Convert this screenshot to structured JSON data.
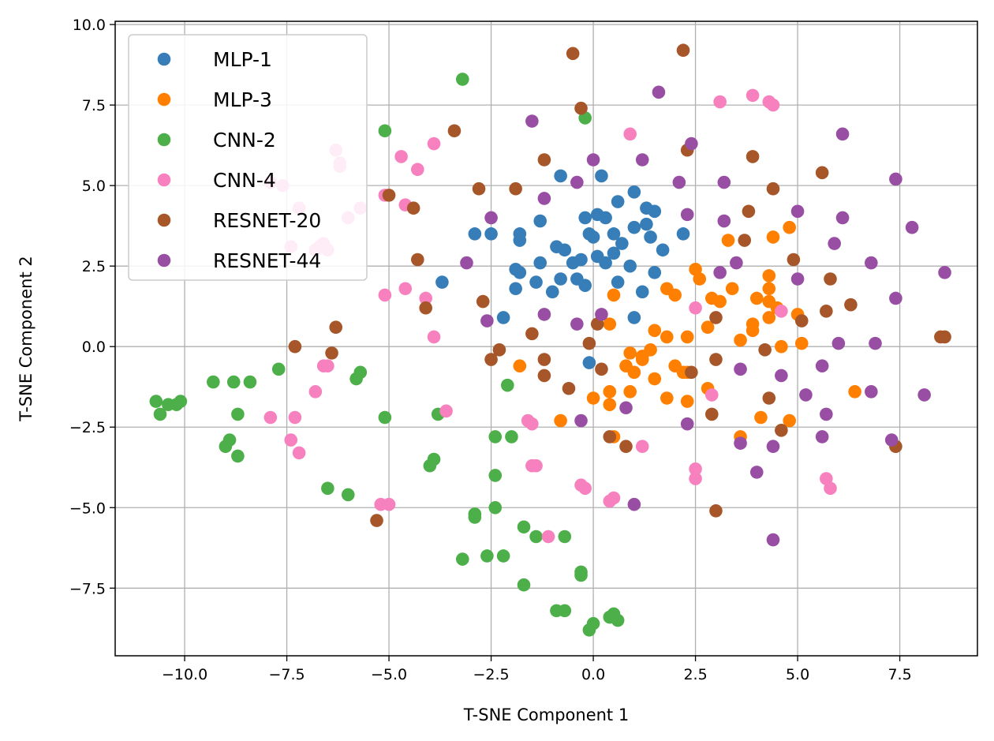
{
  "chart_data": {
    "type": "scatter",
    "title": "",
    "xlabel": "T-SNE Component 1",
    "ylabel": "T-SNE Component 2",
    "xlim": [
      -11.7,
      9.4
    ],
    "ylim": [
      -9.6,
      10.1
    ],
    "xticks": [
      -10.0,
      -7.5,
      -5.0,
      -2.5,
      0.0,
      2.5,
      5.0,
      7.5
    ],
    "yticks": [
      -7.5,
      -5.0,
      -2.5,
      0.0,
      2.5,
      5.0,
      7.5,
      10.0
    ],
    "xtick_labels": [
      "−10.0",
      "−7.5",
      "−5.0",
      "−2.5",
      "0.0",
      "2.5",
      "5.0",
      "7.5"
    ],
    "ytick_labels": [
      "−7.5",
      "−5.0",
      "−2.5",
      "0.0",
      "2.5",
      "5.0",
      "7.5",
      "10.0"
    ],
    "grid": true,
    "legend_position": "top-left",
    "series": [
      {
        "name": "MLP-1",
        "color": "#377eb8",
        "points": [
          [
            -0.8,
            5.3
          ],
          [
            0.2,
            5.3
          ],
          [
            1.0,
            4.8
          ],
          [
            -1.3,
            3.9
          ],
          [
            -1.8,
            3.5
          ],
          [
            -2.9,
            3.5
          ],
          [
            -2.5,
            3.5
          ],
          [
            -0.2,
            4.0
          ],
          [
            0.1,
            4.1
          ],
          [
            0.3,
            4.0
          ],
          [
            0.6,
            4.5
          ],
          [
            1.3,
            4.3
          ],
          [
            1.5,
            4.2
          ],
          [
            1.0,
            3.7
          ],
          [
            1.3,
            3.8
          ],
          [
            -1.8,
            3.3
          ],
          [
            -0.9,
            3.1
          ],
          [
            -0.7,
            3.0
          ],
          [
            -0.1,
            3.5
          ],
          [
            0.0,
            3.4
          ],
          [
            0.5,
            3.5
          ],
          [
            0.7,
            3.2
          ],
          [
            1.4,
            3.4
          ],
          [
            1.7,
            3.0
          ],
          [
            2.2,
            3.5
          ],
          [
            -0.3,
            2.7
          ],
          [
            -0.5,
            2.6
          ],
          [
            0.1,
            2.8
          ],
          [
            0.5,
            2.9
          ],
          [
            0.3,
            2.6
          ],
          [
            0.9,
            2.5
          ],
          [
            1.5,
            2.3
          ],
          [
            -1.9,
            2.4
          ],
          [
            -1.8,
            2.3
          ],
          [
            -1.3,
            2.6
          ],
          [
            -1.4,
            2.0
          ],
          [
            -1.9,
            1.8
          ],
          [
            -0.8,
            2.1
          ],
          [
            -0.4,
            2.1
          ],
          [
            -0.2,
            1.9
          ],
          [
            0.6,
            2.0
          ],
          [
            -1.0,
            1.7
          ],
          [
            1.2,
            1.7
          ],
          [
            -2.2,
            0.9
          ],
          [
            1.0,
            0.9
          ],
          [
            -3.7,
            2.0
          ],
          [
            -0.1,
            -0.5
          ]
        ]
      },
      {
        "name": "MLP-3",
        "color": "#ff7f00",
        "points": [
          [
            3.3,
            3.3
          ],
          [
            4.4,
            3.4
          ],
          [
            4.8,
            3.7
          ],
          [
            2.5,
            2.4
          ],
          [
            2.6,
            2.1
          ],
          [
            3.4,
            1.8
          ],
          [
            4.3,
            2.2
          ],
          [
            4.3,
            1.8
          ],
          [
            1.8,
            1.8
          ],
          [
            2.0,
            1.6
          ],
          [
            2.9,
            1.5
          ],
          [
            3.1,
            1.4
          ],
          [
            4.0,
            1.5
          ],
          [
            4.3,
            1.4
          ],
          [
            5.0,
            1.0
          ],
          [
            0.5,
            1.6
          ],
          [
            4.3,
            0.9
          ],
          [
            4.5,
            1.2
          ],
          [
            0.4,
            0.7
          ],
          [
            1.5,
            0.5
          ],
          [
            2.8,
            0.6
          ],
          [
            3.9,
            0.7
          ],
          [
            3.9,
            0.5
          ],
          [
            1.8,
            0.3
          ],
          [
            2.3,
            0.3
          ],
          [
            3.6,
            0.2
          ],
          [
            5.1,
            0.1
          ],
          [
            4.6,
            0.0
          ],
          [
            0.9,
            -0.2
          ],
          [
            1.2,
            -0.3
          ],
          [
            1.4,
            -0.1
          ],
          [
            0.8,
            -0.6
          ],
          [
            1.0,
            -0.8
          ],
          [
            1.2,
            -0.4
          ],
          [
            2.0,
            -0.6
          ],
          [
            2.2,
            -0.8
          ],
          [
            -1.8,
            -0.6
          ],
          [
            1.5,
            -1.0
          ],
          [
            2.3,
            -0.8
          ],
          [
            2.8,
            -1.3
          ],
          [
            0.4,
            -1.4
          ],
          [
            0.9,
            -1.4
          ],
          [
            1.8,
            -1.6
          ],
          [
            0.0,
            -1.6
          ],
          [
            2.3,
            -1.7
          ],
          [
            4.1,
            -2.2
          ],
          [
            4.8,
            -2.3
          ],
          [
            6.4,
            -1.4
          ],
          [
            -0.8,
            -2.3
          ],
          [
            0.4,
            -1.8
          ],
          [
            0.5,
            -2.8
          ],
          [
            3.6,
            -2.8
          ]
        ]
      },
      {
        "name": "CNN-2",
        "color": "#4daf4a",
        "points": [
          [
            -3.2,
            8.3
          ],
          [
            -0.2,
            7.1
          ],
          [
            -5.1,
            6.7
          ],
          [
            -10.7,
            -1.7
          ],
          [
            -10.6,
            -2.1
          ],
          [
            -10.4,
            -1.8
          ],
          [
            -10.2,
            -1.8
          ],
          [
            -10.1,
            -1.7
          ],
          [
            -9.3,
            -1.1
          ],
          [
            -8.8,
            -1.1
          ],
          [
            -8.4,
            -1.1
          ],
          [
            -7.7,
            -0.7
          ],
          [
            -8.7,
            -2.1
          ],
          [
            -5.8,
            -1.0
          ],
          [
            -5.7,
            -0.8
          ],
          [
            -2.1,
            -1.2
          ],
          [
            -5.1,
            -2.2
          ],
          [
            -3.8,
            -2.1
          ],
          [
            -9.0,
            -3.1
          ],
          [
            -8.9,
            -2.9
          ],
          [
            -8.7,
            -3.4
          ],
          [
            -3.9,
            -3.5
          ],
          [
            -4.0,
            -3.7
          ],
          [
            -2.4,
            -2.8
          ],
          [
            -2.0,
            -2.8
          ],
          [
            -2.4,
            -4.0
          ],
          [
            -6.5,
            -4.4
          ],
          [
            -6.0,
            -4.6
          ],
          [
            -2.4,
            -5.0
          ],
          [
            -2.9,
            -5.3
          ],
          [
            -2.9,
            -5.2
          ],
          [
            -1.7,
            -5.6
          ],
          [
            -1.4,
            -5.9
          ],
          [
            -0.7,
            -5.9
          ],
          [
            -3.2,
            -6.6
          ],
          [
            -2.6,
            -6.5
          ],
          [
            -2.2,
            -6.5
          ],
          [
            -1.7,
            -7.4
          ],
          [
            -0.3,
            -7.1
          ],
          [
            -0.3,
            -7.0
          ],
          [
            -0.9,
            -8.2
          ],
          [
            -0.7,
            -8.2
          ],
          [
            0.4,
            -8.4
          ],
          [
            0.5,
            -8.3
          ],
          [
            0.6,
            -8.5
          ],
          [
            0.0,
            -8.6
          ],
          [
            -0.1,
            -8.8
          ]
        ]
      },
      {
        "name": "CNN-4",
        "color": "#f781bf",
        "points": [
          [
            3.9,
            7.8
          ],
          [
            4.3,
            7.6
          ],
          [
            4.4,
            7.5
          ],
          [
            3.1,
            7.6
          ],
          [
            0.9,
            6.6
          ],
          [
            -4.7,
            5.9
          ],
          [
            -3.9,
            6.3
          ],
          [
            -4.3,
            5.5
          ],
          [
            -6.3,
            6.1
          ],
          [
            -6.2,
            5.6
          ],
          [
            -6.2,
            5.7
          ],
          [
            -7.9,
            5.1
          ],
          [
            -7.6,
            5.0
          ],
          [
            -7.2,
            4.3
          ],
          [
            -5.7,
            4.3
          ],
          [
            -5.1,
            4.7
          ],
          [
            -4.6,
            4.4
          ],
          [
            -6.0,
            4.0
          ],
          [
            -7.4,
            3.1
          ],
          [
            -6.6,
            3.2
          ],
          [
            -6.8,
            3.0
          ],
          [
            -6.7,
            3.1
          ],
          [
            -6.5,
            3.0
          ],
          [
            -4.6,
            1.8
          ],
          [
            -5.1,
            1.6
          ],
          [
            -4.1,
            1.5
          ],
          [
            2.5,
            1.2
          ],
          [
            4.6,
            1.1
          ],
          [
            -3.9,
            0.3
          ],
          [
            -6.6,
            -0.6
          ],
          [
            -6.5,
            -0.6
          ],
          [
            -6.8,
            -1.4
          ],
          [
            -7.9,
            -2.2
          ],
          [
            -7.3,
            -2.2
          ],
          [
            -3.6,
            -2.0
          ],
          [
            -1.6,
            -2.3
          ],
          [
            -1.5,
            -2.4
          ],
          [
            -7.4,
            -2.9
          ],
          [
            -7.2,
            -3.3
          ],
          [
            2.9,
            -1.5
          ],
          [
            1.2,
            -3.1
          ],
          [
            -1.5,
            -3.7
          ],
          [
            -1.4,
            -3.7
          ],
          [
            2.5,
            -3.8
          ],
          [
            2.5,
            -4.1
          ],
          [
            5.7,
            -4.1
          ],
          [
            5.8,
            -4.4
          ],
          [
            -0.3,
            -4.3
          ],
          [
            -0.2,
            -4.4
          ],
          [
            0.4,
            -4.8
          ],
          [
            0.5,
            -4.7
          ],
          [
            -5.2,
            -4.9
          ],
          [
            -5.0,
            -4.9
          ],
          [
            -1.1,
            -5.9
          ]
        ]
      },
      {
        "name": "RESNET-20",
        "color": "#a65628",
        "points": [
          [
            2.2,
            9.2
          ],
          [
            -0.5,
            9.1
          ],
          [
            -0.3,
            7.4
          ],
          [
            -3.4,
            6.7
          ],
          [
            2.3,
            6.1
          ],
          [
            3.9,
            5.9
          ],
          [
            -1.2,
            5.8
          ],
          [
            5.6,
            5.4
          ],
          [
            -2.8,
            4.9
          ],
          [
            -1.9,
            4.9
          ],
          [
            4.4,
            4.9
          ],
          [
            -5.0,
            4.7
          ],
          [
            -4.4,
            4.3
          ],
          [
            3.8,
            4.2
          ],
          [
            3.7,
            3.3
          ],
          [
            -4.3,
            2.7
          ],
          [
            4.9,
            2.7
          ],
          [
            5.8,
            2.1
          ],
          [
            -2.7,
            1.4
          ],
          [
            5.7,
            1.1
          ],
          [
            6.3,
            1.3
          ],
          [
            -4.1,
            1.2
          ],
          [
            3.0,
            0.9
          ],
          [
            0.1,
            0.7
          ],
          [
            5.1,
            0.8
          ],
          [
            -6.3,
            0.6
          ],
          [
            -1.5,
            0.4
          ],
          [
            -7.3,
            0.0
          ],
          [
            -2.3,
            -0.1
          ],
          [
            -0.1,
            0.1
          ],
          [
            4.2,
            -0.1
          ],
          [
            -6.4,
            -0.2
          ],
          [
            -2.5,
            -0.4
          ],
          [
            -1.2,
            -0.4
          ],
          [
            0.2,
            -0.7
          ],
          [
            2.4,
            -0.8
          ],
          [
            3.0,
            -0.4
          ],
          [
            -1.2,
            -0.9
          ],
          [
            -0.6,
            -1.3
          ],
          [
            4.3,
            -1.6
          ],
          [
            2.9,
            -2.1
          ],
          [
            4.6,
            -2.6
          ],
          [
            0.4,
            -2.8
          ],
          [
            0.8,
            -3.1
          ],
          [
            7.4,
            -3.1
          ],
          [
            3.0,
            -5.1
          ],
          [
            -5.3,
            -5.4
          ],
          [
            8.5,
            0.3
          ],
          [
            8.6,
            0.3
          ]
        ]
      },
      {
        "name": "RESNET-44",
        "color": "#984ea3",
        "points": [
          [
            1.6,
            7.9
          ],
          [
            -1.5,
            7.0
          ],
          [
            6.1,
            6.6
          ],
          [
            2.4,
            6.3
          ],
          [
            0.0,
            5.8
          ],
          [
            1.2,
            5.8
          ],
          [
            -0.4,
            5.1
          ],
          [
            2.1,
            5.1
          ],
          [
            3.2,
            5.1
          ],
          [
            7.4,
            5.2
          ],
          [
            -1.2,
            4.6
          ],
          [
            5.0,
            4.2
          ],
          [
            2.3,
            4.1
          ],
          [
            6.1,
            4.0
          ],
          [
            -2.5,
            4.0
          ],
          [
            3.2,
            3.9
          ],
          [
            7.8,
            3.7
          ],
          [
            5.9,
            3.2
          ],
          [
            -3.1,
            2.6
          ],
          [
            3.5,
            2.6
          ],
          [
            6.8,
            2.6
          ],
          [
            3.1,
            2.3
          ],
          [
            5.0,
            2.1
          ],
          [
            8.6,
            2.3
          ],
          [
            7.4,
            1.5
          ],
          [
            -1.2,
            1.0
          ],
          [
            0.2,
            1.0
          ],
          [
            -2.6,
            0.8
          ],
          [
            -0.4,
            0.7
          ],
          [
            6.0,
            0.1
          ],
          [
            6.9,
            0.1
          ],
          [
            3.6,
            -0.7
          ],
          [
            4.6,
            -0.9
          ],
          [
            5.6,
            -0.6
          ],
          [
            5.2,
            -1.5
          ],
          [
            6.8,
            -1.4
          ],
          [
            8.1,
            -1.5
          ],
          [
            0.8,
            -1.9
          ],
          [
            -0.3,
            -2.3
          ],
          [
            2.3,
            -2.4
          ],
          [
            5.7,
            -2.1
          ],
          [
            5.6,
            -2.8
          ],
          [
            7.3,
            -2.9
          ],
          [
            3.6,
            -3.0
          ],
          [
            4.4,
            -3.1
          ],
          [
            4.0,
            -3.9
          ],
          [
            1.0,
            -4.9
          ],
          [
            4.4,
            -6.0
          ]
        ]
      }
    ]
  }
}
